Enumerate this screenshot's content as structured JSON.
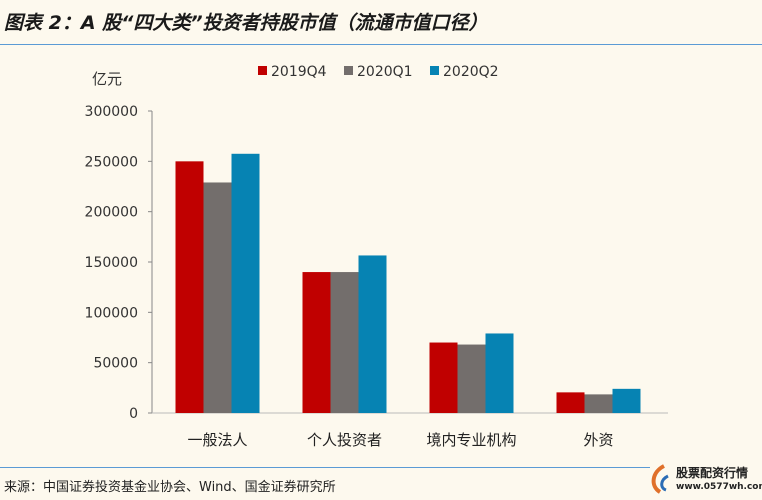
{
  "title": "图表 2：A 股“四大类”投资者持股市值（流通市值口径）",
  "source": "来源：中国证券投资基金业协会、Wind、国金证券研究所",
  "watermark": {
    "brand": "股票配资行情",
    "url": "www.0577wh.com"
  },
  "chart_data": {
    "type": "bar",
    "title": "",
    "ylabel": "亿元",
    "xlabel": "",
    "ylim": [
      0,
      300000
    ],
    "yticks": [
      0,
      50000,
      100000,
      150000,
      200000,
      250000,
      300000
    ],
    "categories": [
      "一般法人",
      "个人投资者",
      "境内专业机构",
      "外资"
    ],
    "legend_position": "top",
    "grid": false,
    "series": [
      {
        "name": "2019Q4",
        "color": "#c00000",
        "values": [
          250000,
          140000,
          70000,
          20500
        ]
      },
      {
        "name": "2020Q1",
        "color": "#736e6c",
        "values": [
          229000,
          140000,
          68000,
          18500
        ]
      },
      {
        "name": "2020Q2",
        "color": "#0683b3",
        "values": [
          257500,
          156500,
          79000,
          24000
        ]
      }
    ]
  }
}
